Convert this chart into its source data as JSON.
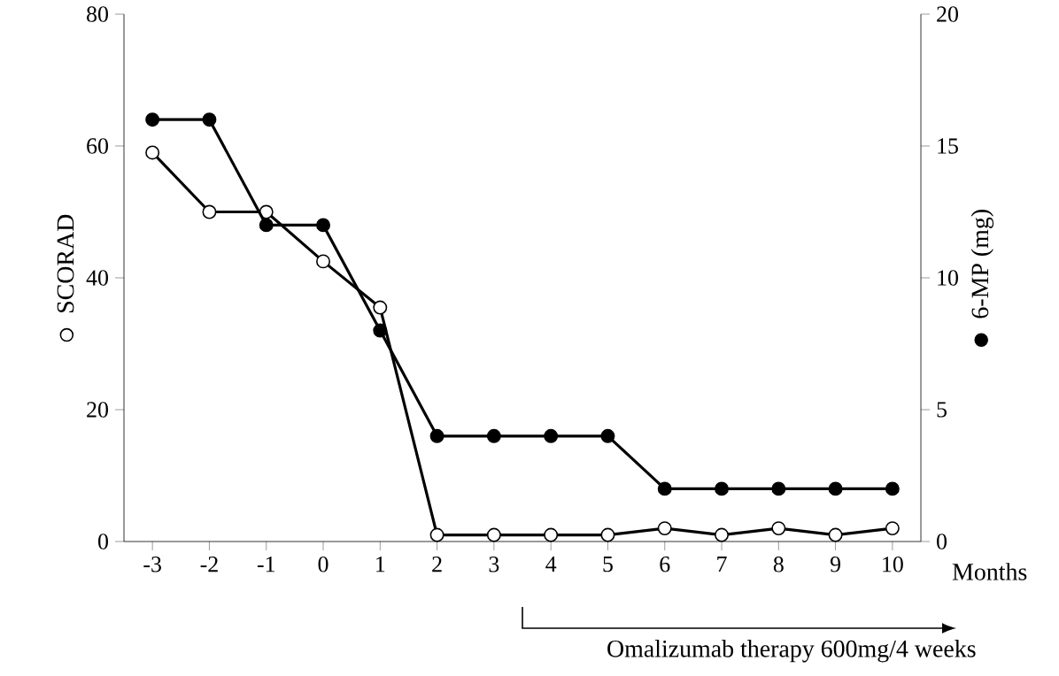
{
  "chart_data": {
    "type": "line",
    "xlabel": "Months",
    "ylabel": "SCORAD",
    "y2label": "6-MP (mg)",
    "x": [
      -3,
      -2,
      -1,
      0,
      1,
      2,
      3,
      4,
      5,
      6,
      7,
      8,
      9,
      10
    ],
    "series": [
      {
        "color": "#000000",
        "marker": "circle",
        "values": [
          59,
          50,
          50,
          42.5,
          35.5,
          1,
          1,
          1,
          1,
          2,
          1,
          2,
          1,
          2
        ]
      },
      {
        "color": "#000000",
        "marker": "circle",
        "axis": "y2",
        "values": [
          16,
          16,
          12,
          12,
          8,
          4,
          4,
          4,
          4,
          2,
          2,
          2,
          2,
          2
        ]
      }
    ],
    "xlim": [
      -3.5,
      10.5
    ],
    "xticks": [
      -3,
      -2,
      -1,
      0,
      1,
      2,
      3,
      4,
      5,
      6,
      7,
      8,
      9,
      10
    ],
    "ylim": [
      0,
      80
    ],
    "yticks": [
      0,
      20,
      40,
      60,
      80
    ],
    "y2lim": [
      0,
      20
    ],
    "y2ticks": [
      0,
      5,
      10,
      15,
      20
    ],
    "grid": false,
    "line_style": "solid",
    "annotations": [
      "Omalizumab therapy 600mg/4 weeks"
    ]
  }
}
